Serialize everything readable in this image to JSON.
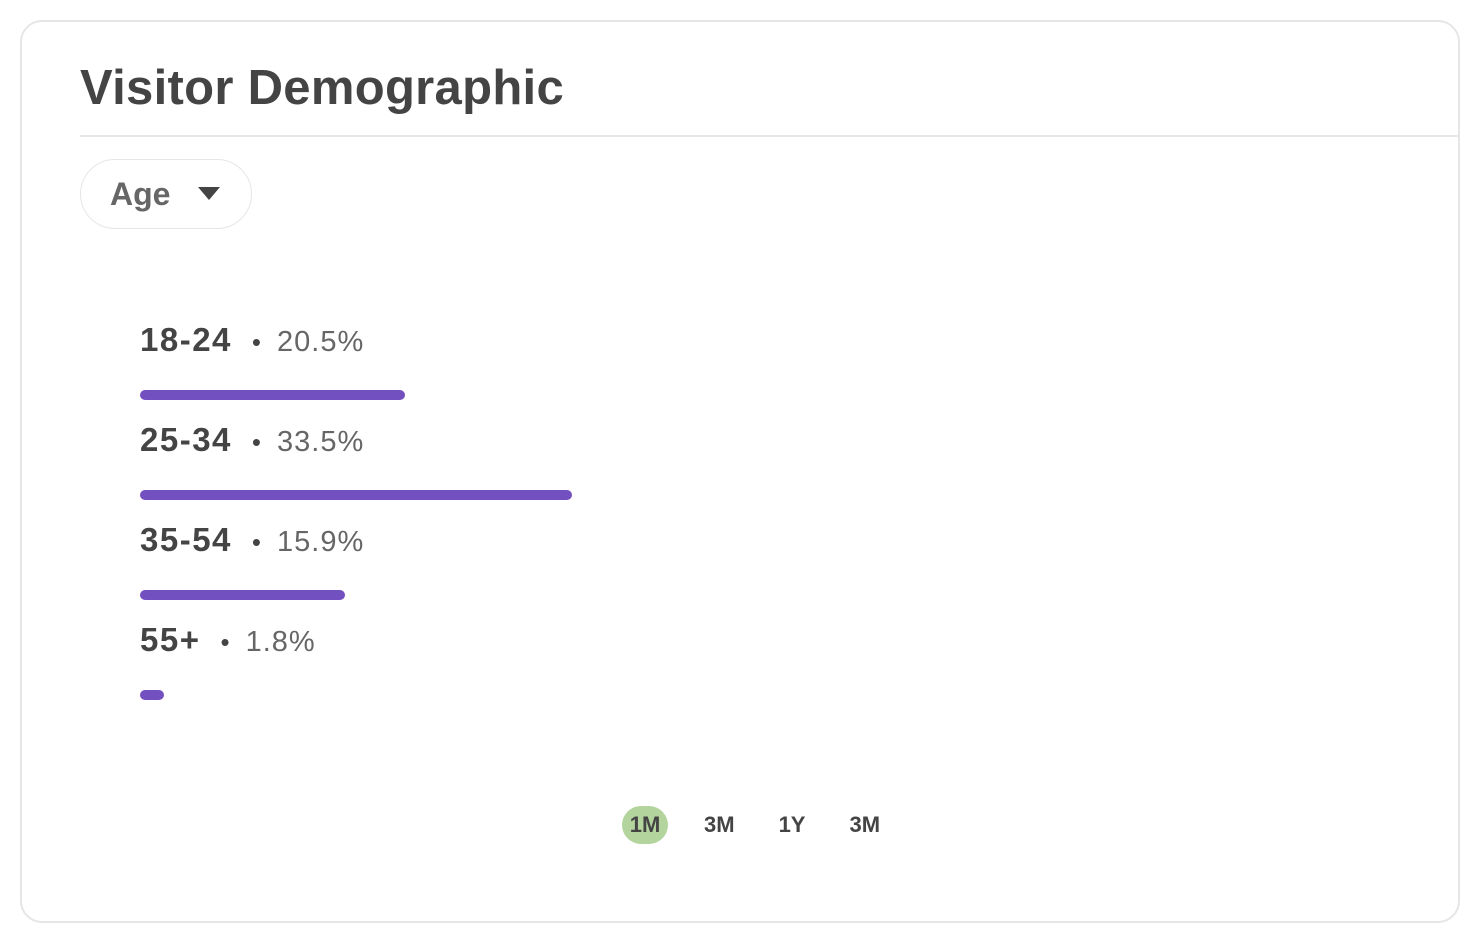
{
  "card": {
    "title": "Visitor Demographic"
  },
  "filter": {
    "selected": "Age"
  },
  "colors": {
    "bar": "#7350bf",
    "active_tab": "#b3d49c",
    "text": "#444444",
    "muted_text": "#666666",
    "border": "#e6e6e6"
  },
  "chart_data": {
    "type": "bar",
    "categories": [
      "18-24",
      "25-34",
      "35-54",
      "55+"
    ],
    "values": [
      20.5,
      33.5,
      15.9,
      1.8
    ],
    "value_labels": [
      "20.5%",
      "33.5%",
      "15.9%",
      "1.8%"
    ],
    "orientation": "horizontal",
    "unit": "%",
    "xlim": [
      0,
      62
    ],
    "title": "",
    "xlabel": "",
    "ylabel": "",
    "grid": false,
    "legend": "none"
  },
  "range_tabs": {
    "active_index": 0,
    "items": [
      "1M",
      "3M",
      "1Y",
      "3M"
    ]
  }
}
